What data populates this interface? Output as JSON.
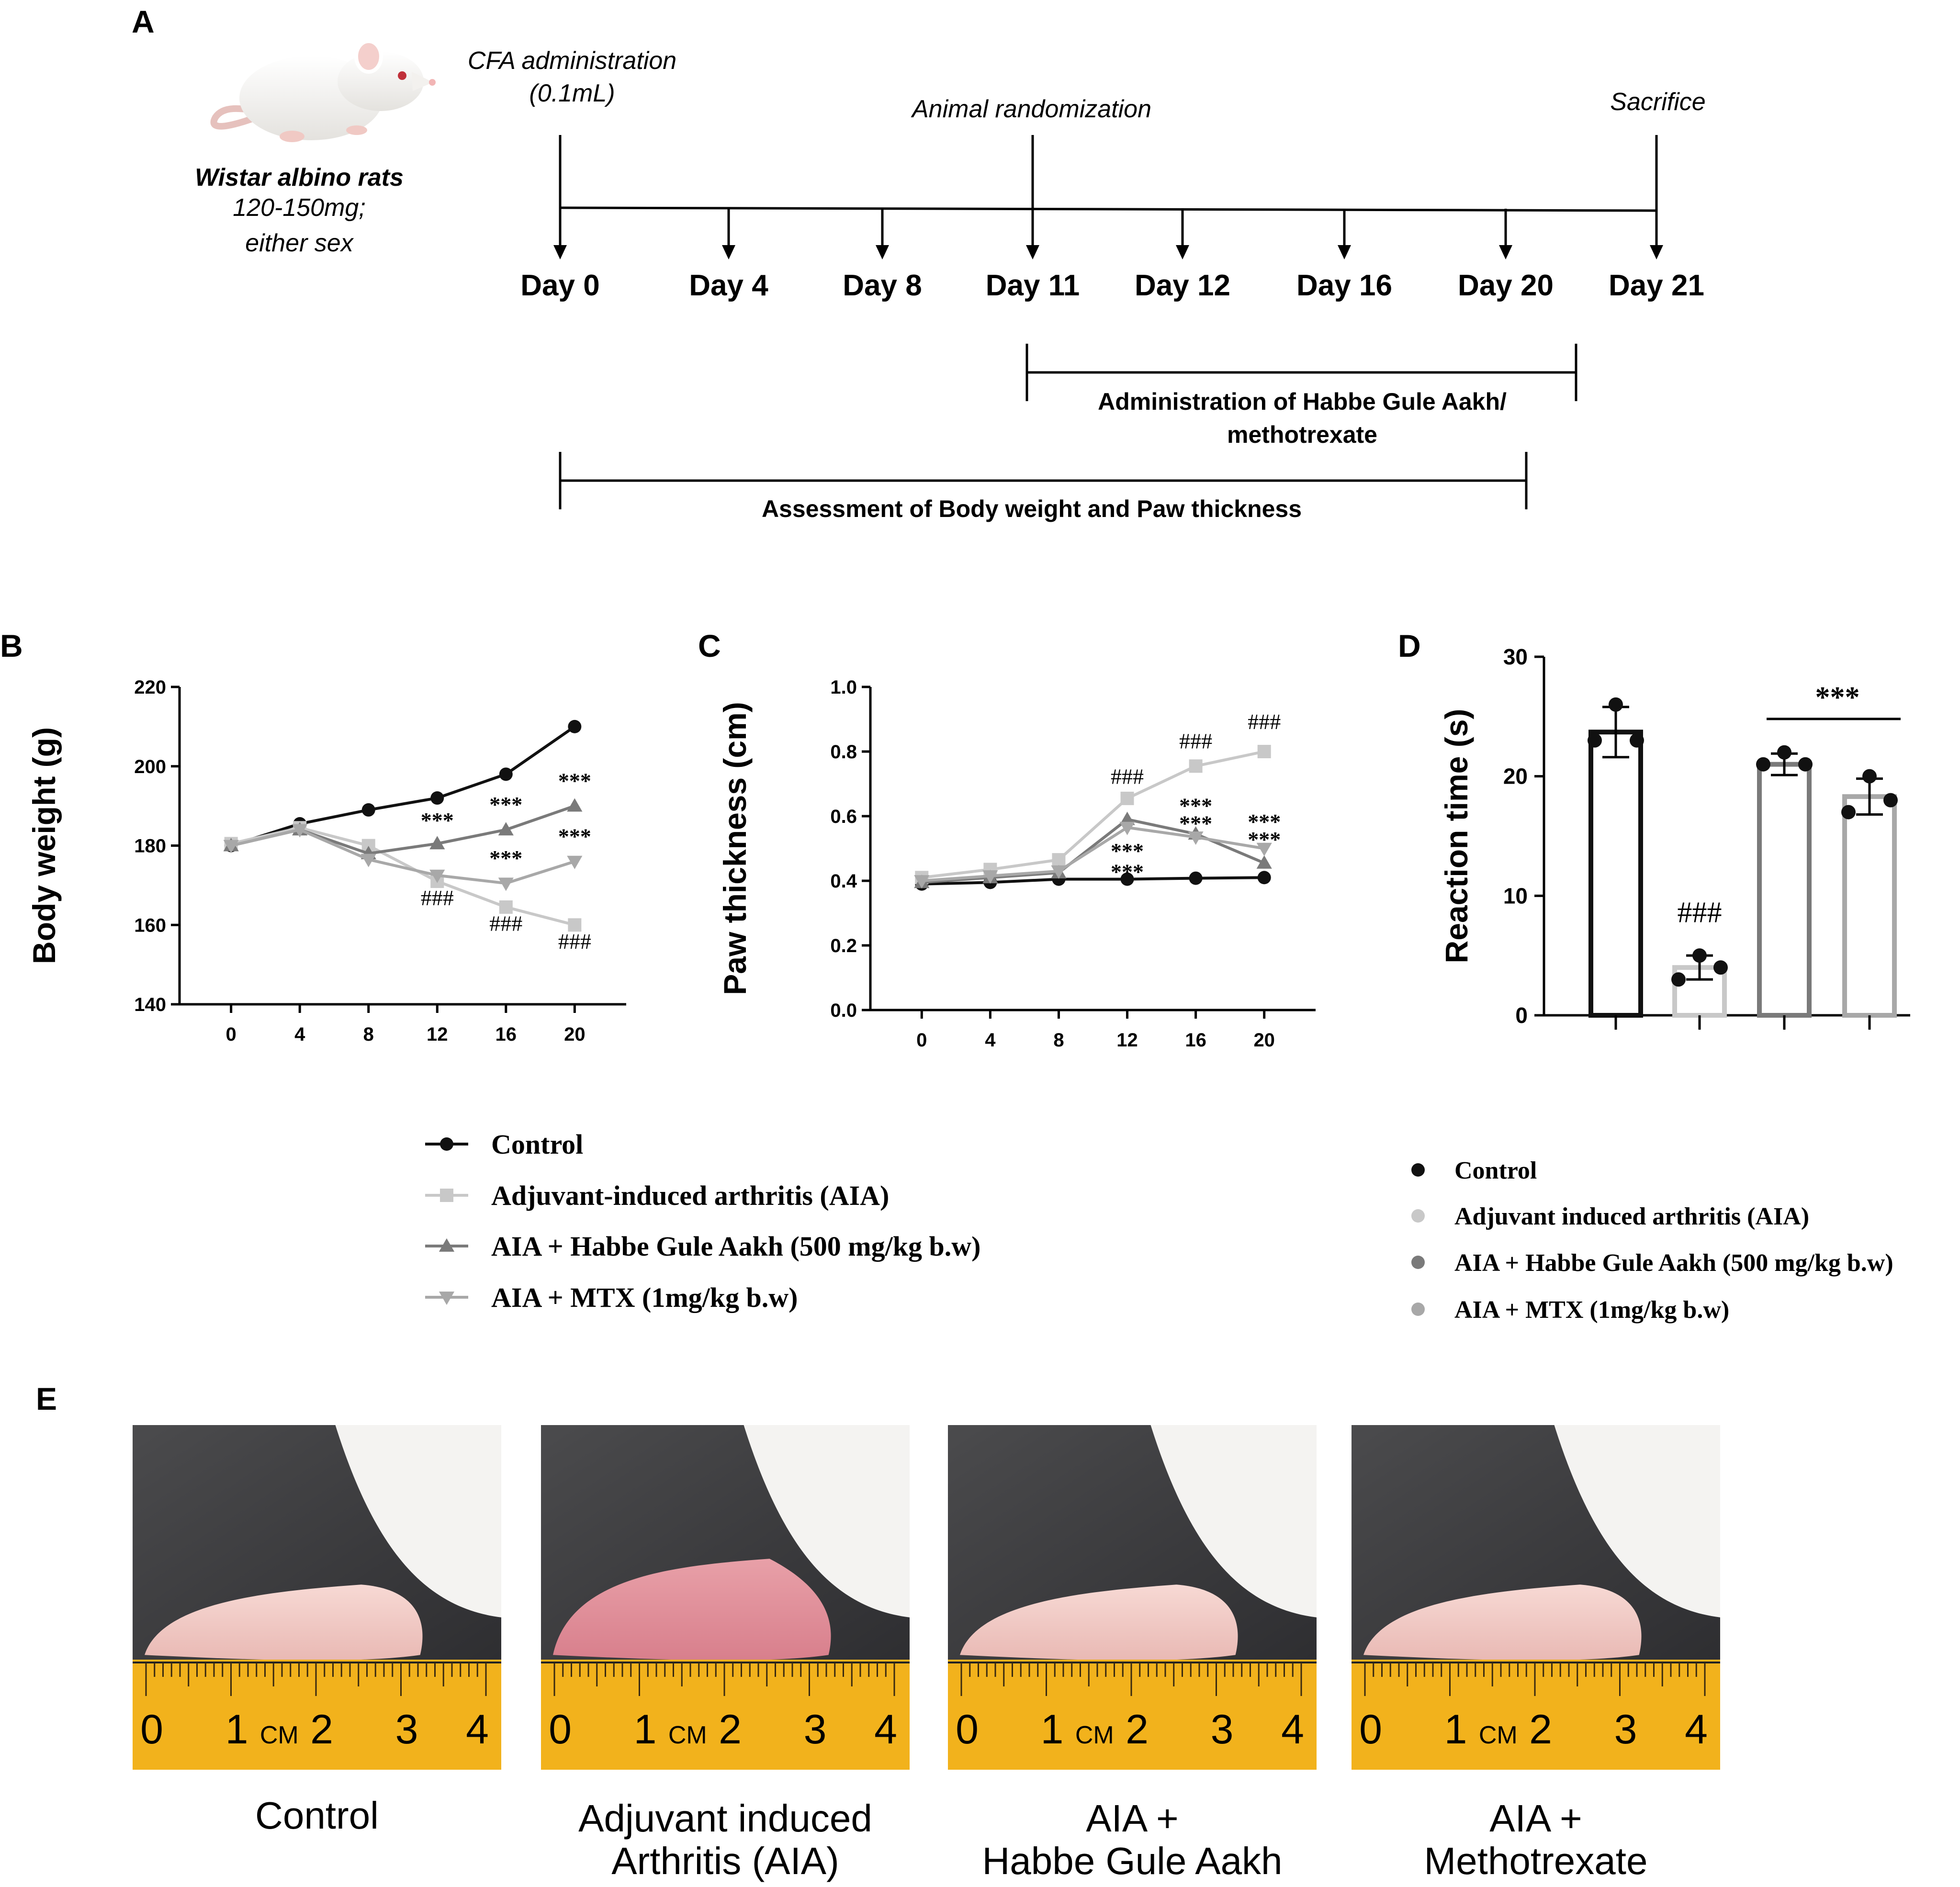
{
  "panel_letters": {
    "a": "A",
    "b": "B",
    "c": "C",
    "d": "D",
    "e": "E"
  },
  "timeline": {
    "animal_title": "Wistar albino  rats",
    "animal_sub1": "120-150mg;",
    "animal_sub2": "either sex",
    "cfa_line1": "CFA administration",
    "cfa_line2": "(0.1mL)",
    "randomization": "Animal randomization",
    "sacrifice": "Sacrifice",
    "days": [
      "Day 0",
      "Day 4",
      "Day 8",
      "Day 11",
      "Day 12",
      "Day 16",
      "Day 20",
      "Day 21"
    ],
    "admin_line1": "Administration  of Habbe Gule Aakh/",
    "admin_line2": "methotrexate",
    "assessment": "Assessment of Body weight and Paw thickness"
  },
  "legend_lines": {
    "items": [
      "Control",
      "Adjuvant-induced arthritis (AIA)",
      "AIA + Habbe Gule Aakh (500 mg/kg b.w)",
      "AIA + MTX (1mg/kg b.w)"
    ]
  },
  "legend_bars": {
    "items": [
      "Control",
      "Adjuvant induced arthritis (AIA)",
      "AIA + Habbe Gule Aakh (500 mg/kg b.w)",
      "AIA + MTX (1mg/kg b.w)"
    ]
  },
  "photos": {
    "captions": [
      [
        "Control",
        ""
      ],
      [
        "Adjuvant induced",
        "Arthritis (AIA)"
      ],
      [
        "AIA +",
        "Habbe Gule Aakh"
      ],
      [
        "AIA +",
        "Methotrexate"
      ]
    ],
    "ruler_labels": [
      "0",
      "1",
      "CM",
      "2",
      "3",
      "4"
    ]
  },
  "colors": {
    "control": "#111111",
    "aia": "#c8c8c8",
    "hga": "#7a7a7a",
    "mtx": "#a8a8a8",
    "ruler": "#f2b21c"
  },
  "chart_data": [
    {
      "panel": "B",
      "type": "line",
      "xlabel": "",
      "ylabel": "Body weight (g)",
      "x": [
        0,
        4,
        8,
        12,
        16,
        20
      ],
      "ylim": [
        140,
        220
      ],
      "yticks": [
        140,
        160,
        180,
        200,
        220
      ],
      "series": [
        {
          "name": "Control",
          "marker": "circle",
          "values": [
            180,
            185.5,
            189,
            192,
            198,
            210
          ]
        },
        {
          "name": "Adjuvant-induced arthritis (AIA)",
          "marker": "square",
          "values": [
            180.5,
            184.5,
            180,
            171,
            164.5,
            160
          ]
        },
        {
          "name": "AIA + Habbe Gule Aakh (500 mg/kg b.w)",
          "marker": "triangle-up",
          "values": [
            180,
            184,
            178,
            180.5,
            184,
            190
          ]
        },
        {
          "name": "AIA + MTX (1mg/kg b.w)",
          "marker": "triangle-down",
          "values": [
            180,
            184,
            176.5,
            172.5,
            170.5,
            176
          ]
        }
      ],
      "annotations": [
        {
          "x": 12,
          "y": 165,
          "text": "###"
        },
        {
          "x": 16,
          "y": 158.5,
          "text": "###"
        },
        {
          "x": 20,
          "y": 154,
          "text": "###"
        },
        {
          "x": 12,
          "y": 184.5,
          "text": "***"
        },
        {
          "x": 16,
          "y": 188.5,
          "text": "***"
        },
        {
          "x": 20,
          "y": 194.5,
          "text": "***"
        },
        {
          "x": 16,
          "y": 175,
          "text": "***"
        },
        {
          "x": 20,
          "y": 180.5,
          "text": "***"
        }
      ]
    },
    {
      "panel": "C",
      "type": "line",
      "xlabel": "",
      "ylabel": "Paw thickness (cm)",
      "x": [
        0,
        4,
        8,
        12,
        16,
        20
      ],
      "ylim": [
        0.0,
        1.0
      ],
      "yticks": [
        0.0,
        0.2,
        0.4,
        0.6,
        0.8,
        1.0
      ],
      "series": [
        {
          "name": "Control",
          "marker": "circle",
          "values": [
            0.39,
            0.395,
            0.405,
            0.405,
            0.408,
            0.41
          ]
        },
        {
          "name": "Adjuvant-induced arthritis (AIA)",
          "marker": "square",
          "values": [
            0.41,
            0.435,
            0.465,
            0.655,
            0.755,
            0.8
          ]
        },
        {
          "name": "AIA + Habbe Gule Aakh (500 mg/kg b.w)",
          "marker": "triangle-up",
          "values": [
            0.395,
            0.41,
            0.425,
            0.59,
            0.545,
            0.455
          ]
        },
        {
          "name": "AIA + MTX (1mg/kg b.w)",
          "marker": "triangle-down",
          "values": [
            0.4,
            0.415,
            0.43,
            0.565,
            0.535,
            0.5
          ]
        }
      ],
      "annotations": [
        {
          "x": 12,
          "y": 0.7,
          "text": "###"
        },
        {
          "x": 16,
          "y": 0.81,
          "text": "###"
        },
        {
          "x": 20,
          "y": 0.87,
          "text": "###"
        },
        {
          "x": 12,
          "y": 0.47,
          "text": "***"
        },
        {
          "x": 12,
          "y": 0.405,
          "text": "***"
        },
        {
          "x": 16,
          "y": 0.61,
          "text": "***"
        },
        {
          "x": 16,
          "y": 0.555,
          "text": "***"
        },
        {
          "x": 20,
          "y": 0.56,
          "text": "***"
        },
        {
          "x": 20,
          "y": 0.505,
          "text": "***"
        }
      ]
    },
    {
      "panel": "D",
      "type": "bar",
      "xlabel": "",
      "ylabel": "Reaction time (s)",
      "categories": [
        "Control",
        "Adjuvant induced arthritis (AIA)",
        "AIA + Habbe Gule Aakh (500 mg/kg b.w)",
        "AIA + MTX (1mg/kg b.w)"
      ],
      "values": [
        23.7,
        4.0,
        21.0,
        18.3
      ],
      "errors": [
        2.1,
        1.0,
        0.9,
        1.5
      ],
      "points": [
        [
          23,
          26,
          23
        ],
        [
          3,
          5,
          4
        ],
        [
          21,
          22,
          21
        ],
        [
          17,
          20,
          18
        ]
      ],
      "ylim": [
        0,
        30
      ],
      "yticks": [
        0,
        10,
        20,
        30
      ],
      "annotations": [
        {
          "category": 1,
          "y": 7.8,
          "text": "###"
        },
        {
          "category": "2-3",
          "y": 25.8,
          "text": "***"
        }
      ]
    }
  ]
}
